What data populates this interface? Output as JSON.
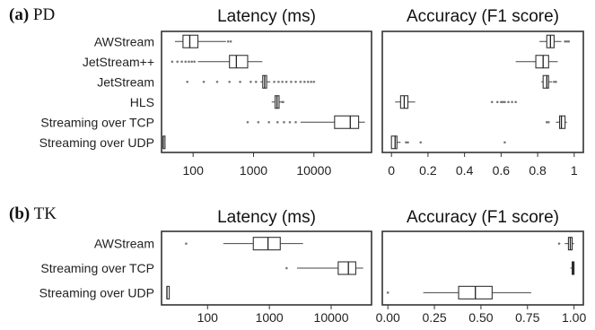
{
  "chart_data": [
    {
      "type": "boxplot",
      "panel": "(a)",
      "panel_label": "PD",
      "panel_bold": "(a)",
      "categories": [
        "AWStream",
        "JetStream++",
        "JetStream",
        "HLS",
        "Streaming over TCP",
        "Streaming over UDP"
      ],
      "latency": {
        "title": "Latency (ms)",
        "scale": "log",
        "xlim": [
          30,
          90000
        ],
        "ticks": [
          100,
          1000,
          10000
        ],
        "tick_labels": [
          "100",
          "1000",
          "10000"
        ],
        "boxes": [
          {
            "whisker_low": 50,
            "q1": 68,
            "median": 88,
            "q3": 120,
            "whisker_high": 350,
            "outliers": [
              380,
              420
            ]
          },
          {
            "whisker_low": 120,
            "q1": 400,
            "median": 520,
            "q3": 800,
            "whisker_high": 1400,
            "outliers": [
              45,
              55,
              65,
              75,
              85,
              95,
              105
            ]
          },
          {
            "whisker_low": 1300,
            "q1": 1420,
            "median": 1530,
            "q3": 1650,
            "whisker_high": 1900,
            "outliers": [
              80,
              150,
              250,
              400,
              600,
              900,
              1100,
              2200,
              2600,
              3000,
              3500,
              4200,
              5000,
              6000,
              7000,
              8000,
              9000,
              10000
            ]
          },
          {
            "whisker_low": 2000,
            "q1": 2280,
            "median": 2450,
            "q3": 2650,
            "whisker_high": 2900,
            "outliers": [
              3000,
              3100
            ]
          },
          {
            "whisker_low": 6000,
            "q1": 22000,
            "median": 40000,
            "q3": 55000,
            "whisker_high": 70000,
            "outliers": [
              800,
              1200,
              1800,
              2500,
              3200,
              4000,
              5000
            ]
          },
          {
            "whisker_low": 32,
            "q1": 32,
            "median": 32,
            "q3": 34,
            "whisker_high": 34,
            "outliers": []
          }
        ]
      },
      "accuracy": {
        "title": "Accuracy (F1 score)",
        "scale": "linear",
        "xlim": [
          -0.05,
          1.05
        ],
        "ticks": [
          0,
          0.2,
          0.4,
          0.6,
          0.8,
          1.0
        ],
        "tick_labels": [
          "0",
          "0.2",
          "0.4",
          "0.6",
          "0.8",
          "1"
        ],
        "boxes": [
          {
            "whisker_low": 0.81,
            "q1": 0.85,
            "median": 0.87,
            "q3": 0.89,
            "whisker_high": 0.93,
            "outliers": [
              0.95,
              0.96,
              0.97
            ]
          },
          {
            "whisker_low": 0.68,
            "q1": 0.79,
            "median": 0.83,
            "q3": 0.86,
            "whisker_high": 0.91,
            "outliers": []
          },
          {
            "whisker_low": 0.82,
            "q1": 0.83,
            "median": 0.85,
            "q3": 0.86,
            "whisker_high": 0.88,
            "outliers": [
              0.89,
              0.9
            ]
          },
          {
            "whisker_low": 0.02,
            "q1": 0.05,
            "median": 0.07,
            "q3": 0.09,
            "whisker_high": 0.13,
            "outliers": [
              0.55,
              0.58,
              0.6,
              0.61,
              0.62,
              0.64,
              0.66,
              0.68
            ]
          },
          {
            "whisker_low": 0.9,
            "q1": 0.92,
            "median": 0.93,
            "q3": 0.95,
            "whisker_high": 0.96,
            "outliers": [
              0.85,
              0.86
            ]
          },
          {
            "whisker_low": 0.0,
            "q1": 0.0,
            "median": 0.02,
            "q3": 0.03,
            "whisker_high": 0.05,
            "outliers": [
              0.08,
              0.09,
              0.16,
              0.62
            ]
          }
        ]
      }
    },
    {
      "type": "boxplot",
      "panel": "(b)",
      "panel_label": "TK",
      "panel_bold": "(b)",
      "categories": [
        "AWStream",
        "Streaming over TCP",
        "Streaming over UDP"
      ],
      "latency": {
        "title": "Latency (ms)",
        "scale": "log",
        "xlim": [
          18,
          45000
        ],
        "ticks": [
          100,
          1000,
          10000
        ],
        "tick_labels": [
          "100",
          "1000",
          "10000"
        ],
        "boxes": [
          {
            "whisker_low": 180,
            "q1": 550,
            "median": 950,
            "q3": 1500,
            "whisker_high": 3500,
            "outliers": [
              45
            ]
          },
          {
            "whisker_low": 2800,
            "q1": 13000,
            "median": 19000,
            "q3": 25000,
            "whisker_high": 33000,
            "outliers": [
              1900
            ]
          },
          {
            "whisker_low": 22,
            "q1": 22,
            "median": 22,
            "q3": 24,
            "whisker_high": 24,
            "outliers": []
          }
        ]
      },
      "accuracy": {
        "title": "Accuracy (F1 score)",
        "scale": "linear",
        "xlim": [
          -0.03,
          1.05
        ],
        "ticks": [
          0,
          0.25,
          0.5,
          0.75,
          1.0
        ],
        "tick_labels": [
          "0.00",
          "0.25",
          "0.50",
          "0.75",
          "1.00"
        ],
        "boxes": [
          {
            "whisker_low": 0.95,
            "q1": 0.97,
            "median": 0.98,
            "q3": 0.99,
            "whisker_high": 1.0,
            "outliers": [
              0.92
            ]
          },
          {
            "whisker_low": 0.98,
            "q1": 0.99,
            "median": 0.995,
            "q3": 1.0,
            "whisker_high": 1.0,
            "outliers": []
          },
          {
            "whisker_low": 0.19,
            "q1": 0.38,
            "median": 0.47,
            "q3": 0.56,
            "whisker_high": 0.77,
            "outliers": [
              0.0
            ]
          }
        ]
      }
    }
  ]
}
